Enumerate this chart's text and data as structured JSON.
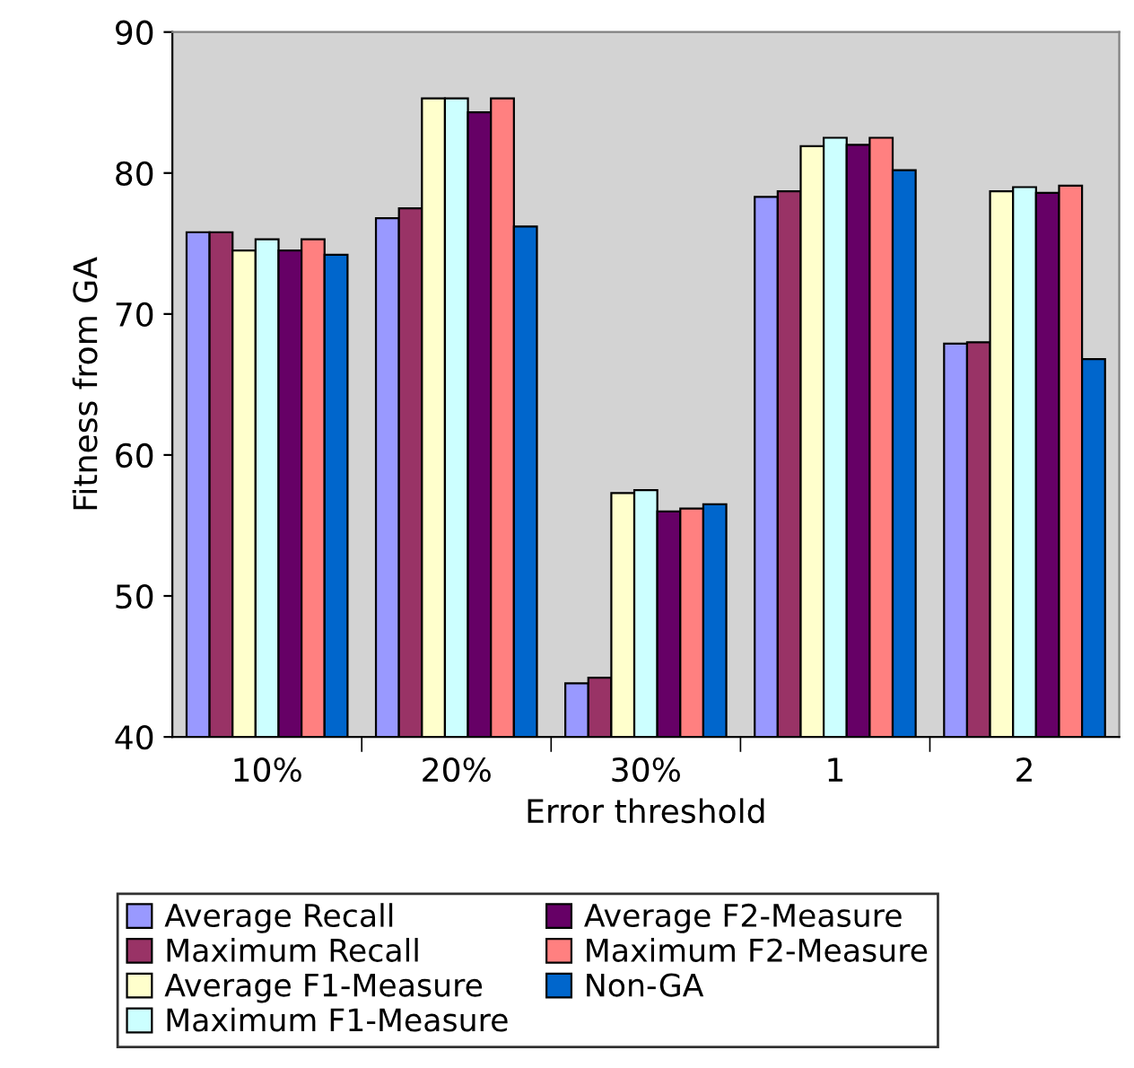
{
  "chart_data": {
    "type": "bar",
    "xlabel": "Error threshold",
    "ylabel": "Fitness from GA",
    "categories": [
      "10%",
      "20%",
      "30%",
      "1",
      "2"
    ],
    "ylim": [
      40,
      90
    ],
    "yticks": [
      40,
      50,
      60,
      70,
      80,
      90
    ],
    "grid": false,
    "legend": "bottom",
    "series": [
      {
        "name": "Average Recall",
        "color": "#9999ff",
        "values": [
          75.8,
          76.8,
          43.8,
          78.3,
          67.9
        ]
      },
      {
        "name": "Maximum Recall",
        "color": "#993366",
        "values": [
          75.8,
          77.5,
          44.2,
          78.7,
          68.0
        ]
      },
      {
        "name": "Average F1-Measure",
        "color": "#ffffcc",
        "values": [
          74.5,
          85.3,
          57.3,
          81.9,
          78.7
        ]
      },
      {
        "name": "Maximum F1-Measure",
        "color": "#ccffff",
        "values": [
          75.3,
          85.3,
          57.5,
          82.5,
          79.0
        ]
      },
      {
        "name": "Average F2-Measure",
        "color": "#660066",
        "values": [
          74.5,
          84.3,
          56.0,
          82.0,
          78.6
        ]
      },
      {
        "name": "Maximum F2-Measure",
        "color": "#ff8080",
        "values": [
          75.3,
          85.3,
          56.2,
          82.5,
          79.1
        ]
      },
      {
        "name": "Non-GA",
        "color": "#0066cc",
        "values": [
          74.2,
          76.2,
          56.5,
          80.2,
          66.8
        ]
      }
    ]
  }
}
